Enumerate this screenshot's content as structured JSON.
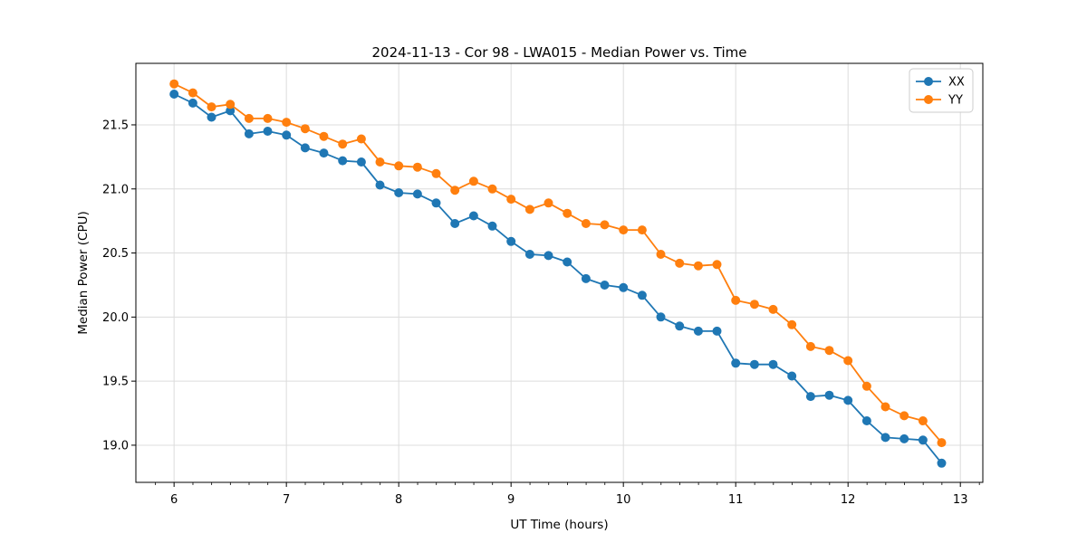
{
  "chart_data": {
    "type": "line",
    "title": "2024-11-13 - Cor 98 - LWA015 - Median Power vs. Time",
    "xlabel": "UT Time (hours)",
    "ylabel": "Median Power (CPU)",
    "x": [
      6.0,
      6.167,
      6.333,
      6.5,
      6.667,
      6.833,
      7.0,
      7.167,
      7.333,
      7.5,
      7.667,
      7.833,
      8.0,
      8.167,
      8.333,
      8.5,
      8.667,
      8.833,
      9.0,
      9.167,
      9.333,
      9.5,
      9.667,
      9.833,
      10.0,
      10.167,
      10.333,
      10.5,
      10.667,
      10.833,
      11.0,
      11.167,
      11.333,
      11.5,
      11.667,
      11.833,
      12.0,
      12.167,
      12.333,
      12.5,
      12.667,
      12.833
    ],
    "series": [
      {
        "name": "XX",
        "color": "#1f77b4",
        "marker": "circle",
        "values": [
          21.74,
          21.67,
          21.56,
          21.61,
          21.43,
          21.45,
          21.42,
          21.32,
          21.28,
          21.22,
          21.21,
          21.03,
          20.97,
          20.96,
          20.89,
          20.73,
          20.79,
          20.71,
          20.59,
          20.49,
          20.48,
          20.43,
          20.3,
          20.25,
          20.23,
          20.17,
          20.0,
          19.93,
          19.89,
          19.89,
          19.64,
          19.63,
          19.63,
          19.54,
          19.38,
          19.39,
          19.35,
          19.19,
          19.06,
          19.05,
          19.04,
          18.86
        ]
      },
      {
        "name": "YY",
        "color": "#ff7f0e",
        "marker": "circle",
        "values": [
          21.82,
          21.75,
          21.64,
          21.66,
          21.55,
          21.55,
          21.52,
          21.47,
          21.41,
          21.35,
          21.39,
          21.21,
          21.18,
          21.17,
          21.12,
          20.99,
          21.06,
          21.0,
          20.92,
          20.84,
          20.89,
          20.81,
          20.73,
          20.72,
          20.68,
          20.68,
          20.49,
          20.42,
          20.4,
          20.41,
          20.13,
          20.1,
          20.06,
          19.94,
          19.77,
          19.74,
          19.66,
          19.46,
          19.3,
          19.23,
          19.19,
          19.02
        ]
      }
    ],
    "xlim": [
      5.66,
      13.2
    ],
    "ylim": [
      18.71,
      21.98
    ],
    "xticks": [
      6,
      7,
      8,
      9,
      10,
      11,
      12,
      13
    ],
    "yticks": [
      19.0,
      19.5,
      20.0,
      20.5,
      21.0,
      21.5
    ],
    "minor_xtick_step": 0.1667,
    "grid": true,
    "grid_color": "#dcdcdc",
    "spine_color": "#000000",
    "legend_position": "upper right"
  },
  "legend": {
    "items": [
      {
        "label": "XX",
        "color": "#1f77b4"
      },
      {
        "label": "YY",
        "color": "#ff7f0e"
      }
    ]
  }
}
